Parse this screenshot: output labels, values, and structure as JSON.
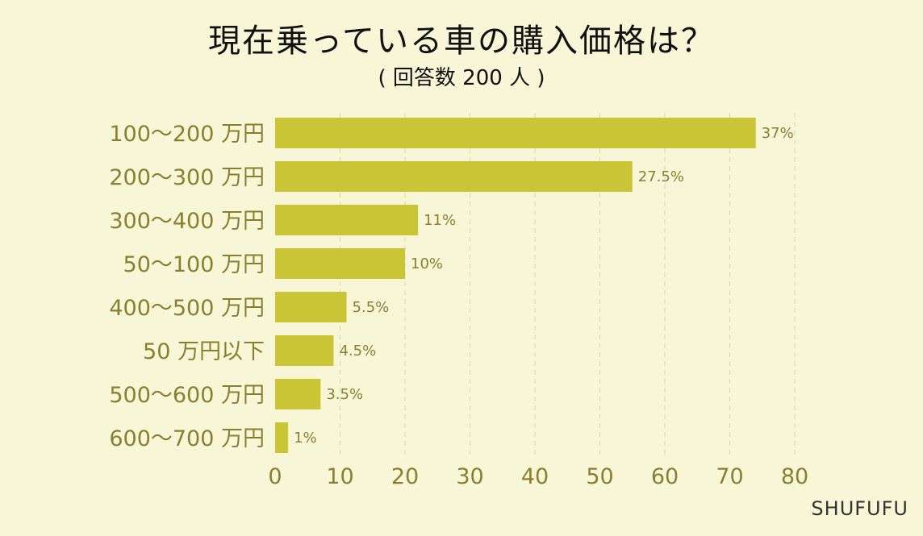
{
  "header": {
    "title": "現在乗っている車の購入価格は？",
    "subtitle": "( 回答数 200 人 )"
  },
  "brand": "SHUFUFU",
  "colors": {
    "background": "#f7f7d8",
    "bar": "#c9c535",
    "label": "#8a7f2e"
  },
  "chart_data": {
    "type": "bar",
    "orientation": "horizontal",
    "title": "現在乗っている車の購入価格は？",
    "subtitle": "( 回答数 200 人 )",
    "categories": [
      "100～200 万円",
      "200～300 万円",
      "300～400 万円",
      "50～100 万円",
      "400～500 万円",
      "50 万円以下",
      "500～600 万円",
      "600～700 万円"
    ],
    "values": [
      74,
      55,
      22,
      20,
      11,
      9,
      7,
      2
    ],
    "value_labels": [
      "37%",
      "27.5%",
      "11%",
      "10%",
      "5.5%",
      "4.5%",
      "3.5%",
      "1%"
    ],
    "xlim": [
      0,
      80
    ],
    "xticks": [
      "0",
      "10",
      "20",
      "30",
      "40",
      "50",
      "60",
      "70",
      "80"
    ],
    "grid": true
  }
}
